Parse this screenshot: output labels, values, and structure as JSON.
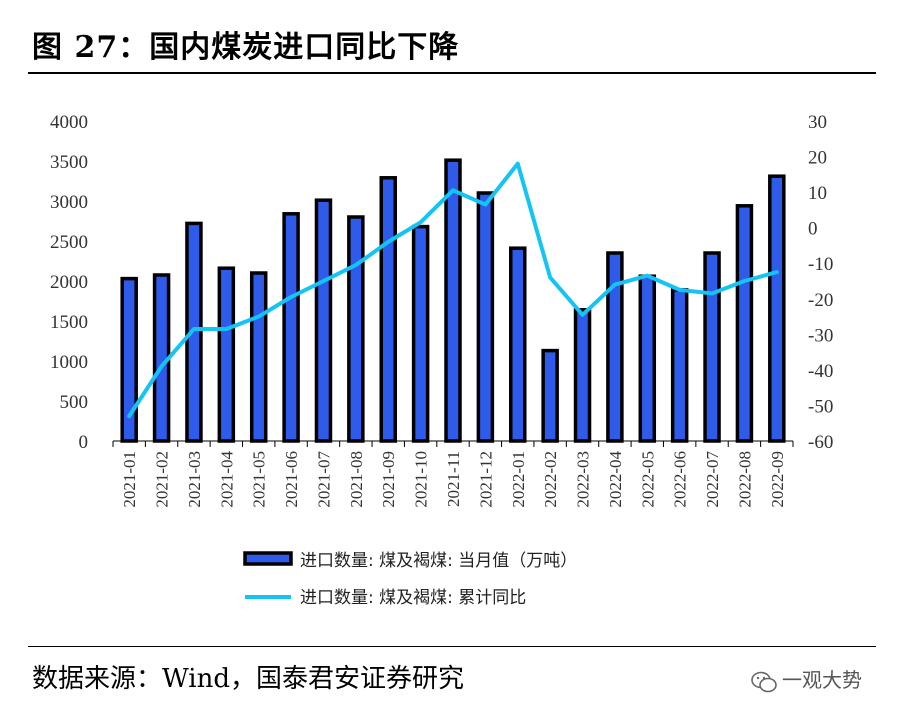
{
  "header": {
    "title": "图 27：国内煤炭进口同比下降"
  },
  "footer": {
    "source": "数据来源：Wind，国泰君安证券研究",
    "watermark": "一观大势"
  },
  "colors": {
    "bar_fill": "#2f5bea",
    "bar_stroke": "#000000",
    "line": "#14c4f5",
    "axis": "#000000"
  },
  "chart_data": {
    "type": "bar+line",
    "title": "国内煤炭进口同比下降",
    "categories": [
      "2021-01",
      "2021-02",
      "2021-03",
      "2021-04",
      "2021-05",
      "2021-06",
      "2021-07",
      "2021-08",
      "2021-09",
      "2021-10",
      "2021-11",
      "2021-12",
      "2022-01",
      "2022-02",
      "2022-03",
      "2022-04",
      "2022-05",
      "2022-06",
      "2022-07",
      "2022-08",
      "2022-09"
    ],
    "y_left": {
      "min": 0,
      "max": 4000,
      "step": 500,
      "ticks": [
        "0",
        "500",
        "1000",
        "1500",
        "2000",
        "2500",
        "3000",
        "3500",
        "4000"
      ]
    },
    "y_right": {
      "min": -60,
      "max": 30,
      "step": 10,
      "ticks": [
        "-60",
        "-50",
        "-40",
        "-30",
        "-20",
        "-10",
        "0",
        "10",
        "20",
        "30"
      ]
    },
    "series": [
      {
        "name": "进口数量:煤及褐煤:当月值（万吨）",
        "type": "bar",
        "axis": "left",
        "values": [
          2030,
          2075,
          2720,
          2160,
          2100,
          2840,
          3010,
          2800,
          3290,
          2680,
          3510,
          3100,
          2410,
          1130,
          1640,
          2350,
          2060,
          1890,
          2350,
          2940,
          3310
        ]
      },
      {
        "name": "进口数量:煤及褐煤:累计同比",
        "type": "line",
        "axis": "right",
        "values": [
          -53,
          -39,
          -28.5,
          -28.5,
          -25,
          -19.5,
          -15,
          -10.5,
          -4,
          1.5,
          10.5,
          6.5,
          18,
          -14,
          -24.5,
          -16,
          -13.5,
          -17.5,
          -18.5,
          -15,
          -12.5
        ]
      }
    ],
    "legend": [
      {
        "label": "进口数量: 煤及褐煤: 当月值（万吨）",
        "kind": "bar"
      },
      {
        "label": "进口数量: 煤及褐煤: 累计同比",
        "kind": "line"
      }
    ],
    "legend_position": "bottom-center",
    "grid": false
  }
}
